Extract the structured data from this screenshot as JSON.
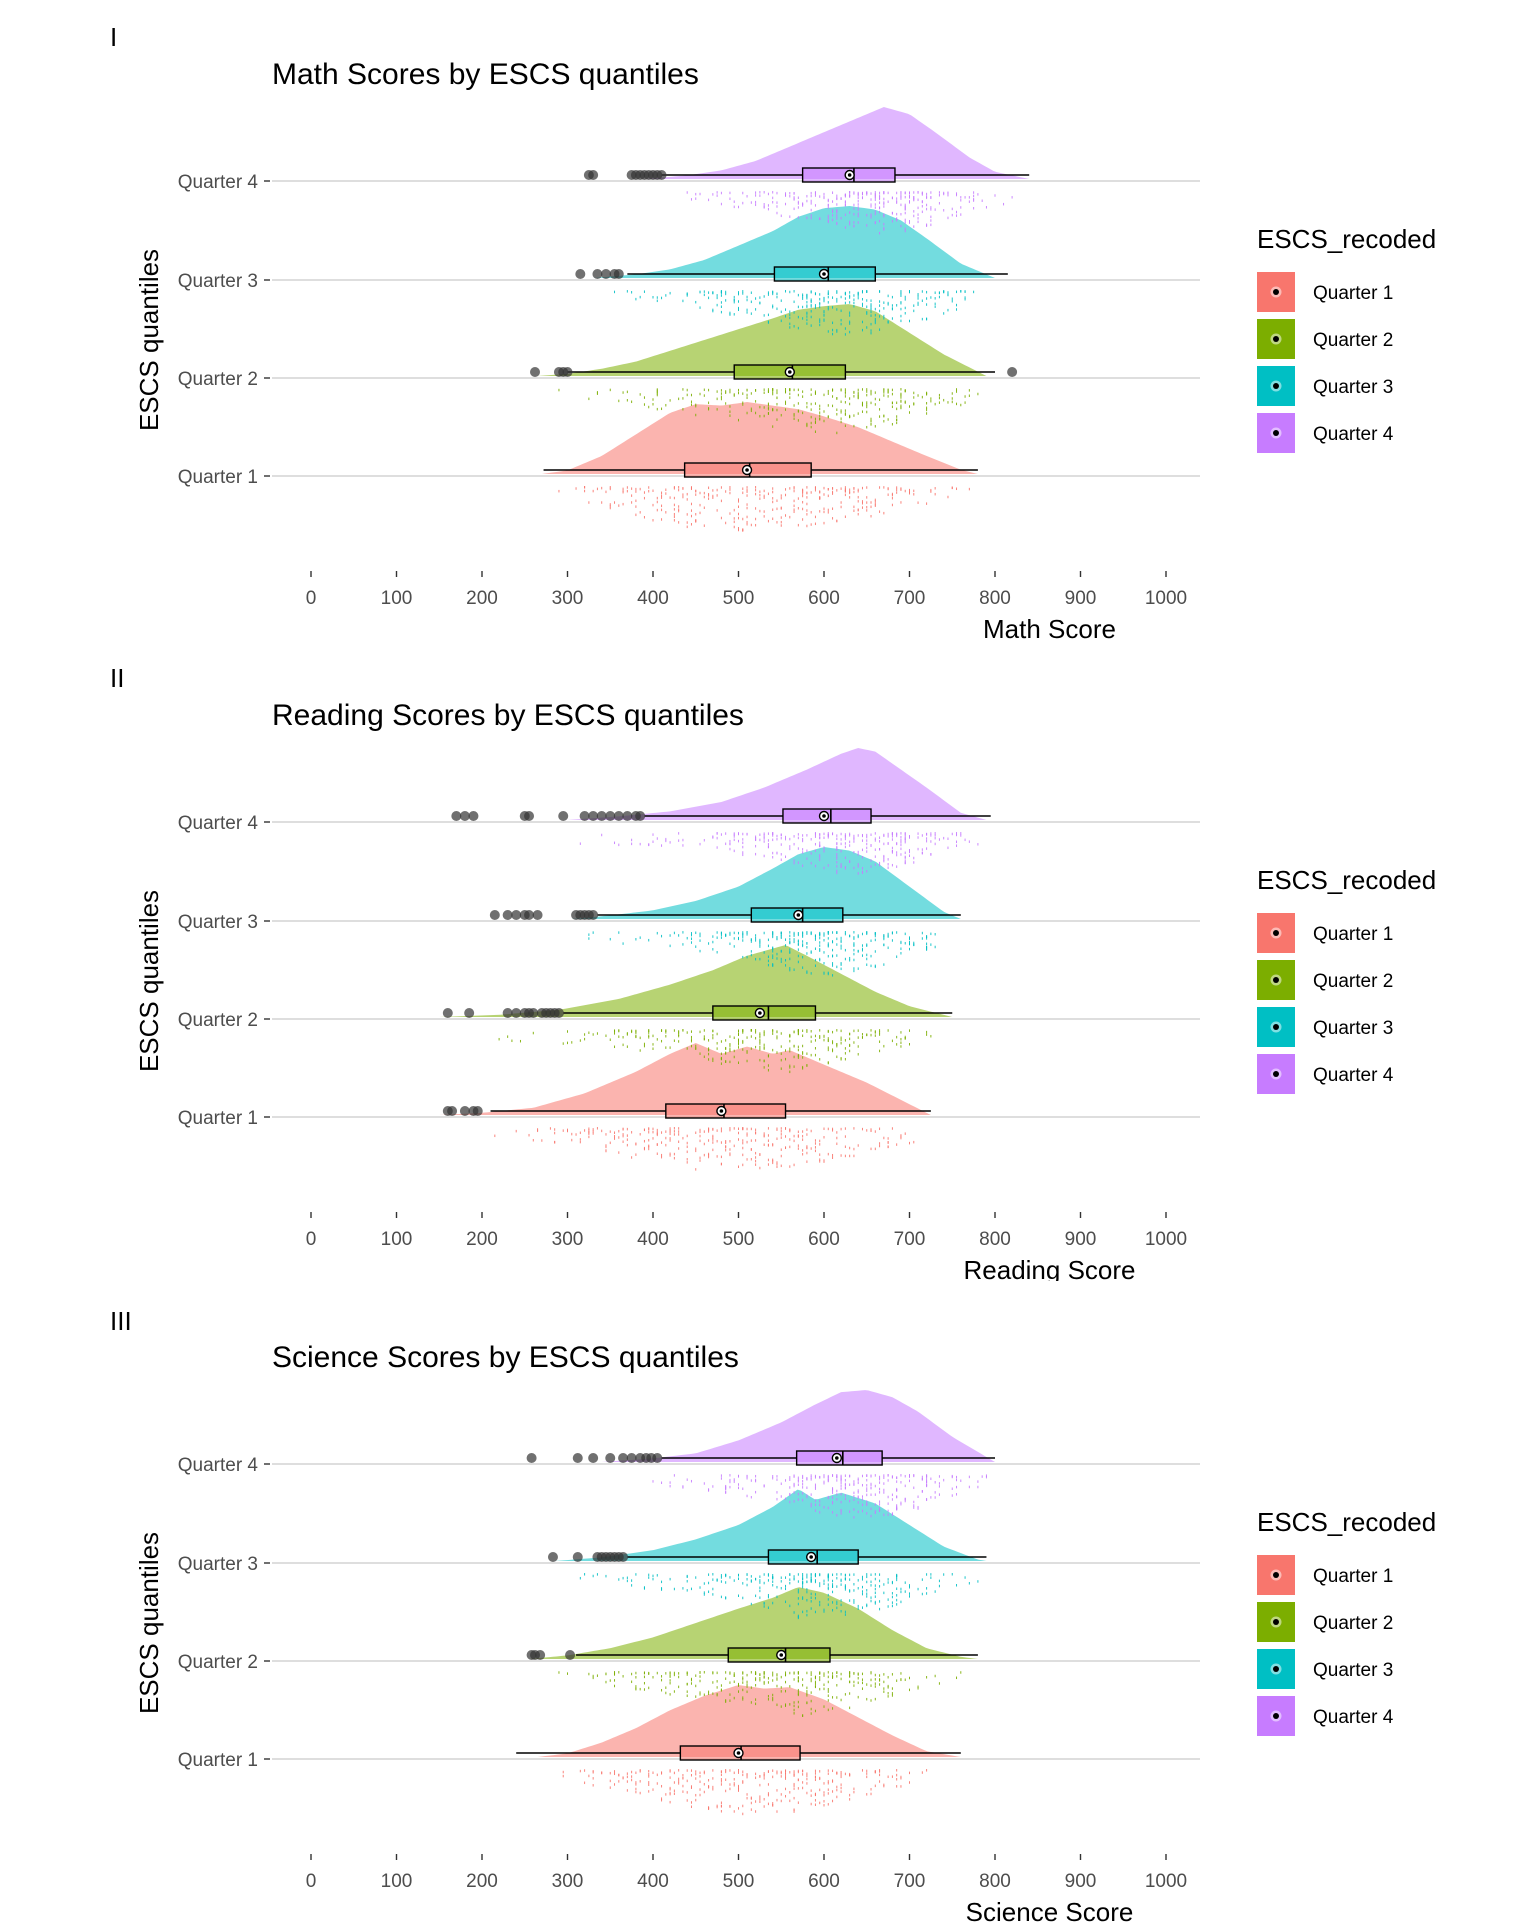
{
  "panels": [
    {
      "label": "I"
    },
    {
      "label": "II"
    },
    {
      "label": "III"
    }
  ],
  "chart_data": [
    {
      "type": "raincloud",
      "title": "Math Scores by ESCS quantiles",
      "xlabel": "Math Score",
      "ylabel": "ESCS quantiles",
      "xlim": [
        -30,
        1050
      ],
      "xticks": [
        0,
        100,
        200,
        300,
        400,
        500,
        600,
        700,
        800,
        900,
        1000
      ],
      "categories": [
        "Quarter 1",
        "Quarter 2",
        "Quarter 3",
        "Quarter 4"
      ],
      "legend": {
        "title": "ESCS_recoded",
        "position": "right",
        "entries": [
          "Quarter 1",
          "Quarter 2",
          "Quarter 3",
          "Quarter 4"
        ]
      },
      "grid": "horizontal",
      "series": [
        {
          "category": "Quarter 1",
          "color": "#F8766D",
          "density_x": [
            270,
            300,
            340,
            380,
            420,
            450,
            480,
            510,
            540,
            570,
            600,
            640,
            680,
            720,
            760,
            780
          ],
          "density_y": [
            0,
            0.05,
            0.25,
            0.55,
            0.85,
            0.97,
            0.95,
            1.0,
            0.95,
            0.9,
            0.8,
            0.65,
            0.45,
            0.25,
            0.06,
            0
          ],
          "box": {
            "whisker_low": 272,
            "q1": 437,
            "median": 513,
            "q3": 585,
            "whisker_high": 780
          },
          "mean": 510,
          "outliers": []
        },
        {
          "category": "Quarter 2",
          "color": "#7CAE00",
          "density_x": [
            265,
            300,
            340,
            380,
            420,
            460,
            500,
            540,
            570,
            600,
            630,
            660,
            700,
            740,
            790
          ],
          "density_y": [
            0,
            0.03,
            0.1,
            0.2,
            0.35,
            0.5,
            0.65,
            0.8,
            0.92,
            0.97,
            1.0,
            0.9,
            0.6,
            0.3,
            0
          ],
          "box": {
            "whisker_low": 300,
            "q1": 495,
            "median": 563,
            "q3": 625,
            "whisker_high": 800
          },
          "mean": 560,
          "outliers": [
            262,
            290,
            295,
            300,
            820
          ]
        },
        {
          "category": "Quarter 3",
          "color": "#00BFC4",
          "density_x": [
            330,
            380,
            420,
            460,
            500,
            540,
            570,
            600,
            630,
            660,
            690,
            720,
            760,
            800
          ],
          "density_y": [
            0,
            0.05,
            0.12,
            0.25,
            0.45,
            0.65,
            0.85,
            0.97,
            1.0,
            0.95,
            0.8,
            0.55,
            0.2,
            0
          ],
          "box": {
            "whisker_low": 370,
            "q1": 542,
            "median": 605,
            "q3": 660,
            "whisker_high": 815
          },
          "mean": 600,
          "outliers": [
            315,
            335,
            345,
            355,
            360
          ]
        },
        {
          "category": "Quarter 4",
          "color": "#C77CFF",
          "density_x": [
            390,
            440,
            480,
            520,
            560,
            600,
            640,
            670,
            700,
            730,
            770,
            800,
            840
          ],
          "density_y": [
            0,
            0.05,
            0.12,
            0.25,
            0.45,
            0.65,
            0.85,
            1.0,
            0.9,
            0.65,
            0.3,
            0.1,
            0
          ],
          "box": {
            "whisker_low": 410,
            "q1": 575,
            "median": 635,
            "q3": 683,
            "whisker_high": 840
          },
          "mean": 630,
          "outliers": [
            325,
            330,
            375,
            380,
            385,
            390,
            395,
            400,
            405,
            410
          ]
        }
      ]
    },
    {
      "type": "raincloud",
      "title": "Reading Scores by ESCS quantiles",
      "xlabel": "Reading Score",
      "ylabel": "ESCS quantiles",
      "xlim": [
        -30,
        1050
      ],
      "xticks": [
        0,
        100,
        200,
        300,
        400,
        500,
        600,
        700,
        800,
        900,
        1000
      ],
      "categories": [
        "Quarter 1",
        "Quarter 2",
        "Quarter 3",
        "Quarter 4"
      ],
      "legend": {
        "title": "ESCS_recoded",
        "position": "right",
        "entries": [
          "Quarter 1",
          "Quarter 2",
          "Quarter 3",
          "Quarter 4"
        ]
      },
      "grid": "horizontal",
      "series": [
        {
          "category": "Quarter 1",
          "color": "#F8766D",
          "density_x": [
            150,
            200,
            260,
            320,
            380,
            420,
            450,
            480,
            510,
            540,
            560,
            600,
            650,
            700,
            725
          ],
          "density_y": [
            0,
            0.03,
            0.1,
            0.3,
            0.6,
            0.85,
            1.0,
            0.85,
            0.95,
            0.85,
            0.9,
            0.7,
            0.45,
            0.15,
            0
          ],
          "box": {
            "whisker_low": 210,
            "q1": 415,
            "median": 483,
            "q3": 555,
            "whisker_high": 725
          },
          "mean": 480,
          "outliers": [
            160,
            165,
            180,
            190,
            195
          ]
        },
        {
          "category": "Quarter 2",
          "color": "#7CAE00",
          "density_x": [
            150,
            220,
            290,
            360,
            420,
            470,
            510,
            540,
            555,
            580,
            620,
            660,
            700,
            740,
            750
          ],
          "density_y": [
            0,
            0.03,
            0.1,
            0.25,
            0.45,
            0.65,
            0.85,
            0.95,
            1.0,
            0.85,
            0.6,
            0.35,
            0.15,
            0.03,
            0
          ],
          "box": {
            "whisker_low": 295,
            "q1": 470,
            "median": 535,
            "q3": 590,
            "whisker_high": 750
          },
          "mean": 525,
          "outliers": [
            160,
            185,
            230,
            240,
            250,
            255,
            260,
            270,
            275,
            280,
            285,
            290
          ]
        },
        {
          "category": "Quarter 3",
          "color": "#00BFC4",
          "density_x": [
            305,
            350,
            400,
            450,
            500,
            540,
            570,
            600,
            630,
            660,
            700,
            740,
            760
          ],
          "density_y": [
            0,
            0.05,
            0.12,
            0.25,
            0.45,
            0.7,
            0.9,
            1.0,
            0.95,
            0.8,
            0.45,
            0.1,
            0
          ],
          "box": {
            "whisker_low": 335,
            "q1": 515,
            "median": 575,
            "q3": 622,
            "whisker_high": 760
          },
          "mean": 570,
          "outliers": [
            215,
            230,
            240,
            250,
            255,
            265,
            310,
            315,
            320,
            325,
            330
          ]
        },
        {
          "category": "Quarter 4",
          "color": "#C77CFF",
          "density_x": [
            300,
            360,
            420,
            480,
            530,
            580,
            620,
            640,
            660,
            690,
            720,
            760,
            790
          ],
          "density_y": [
            0,
            0.05,
            0.12,
            0.25,
            0.45,
            0.7,
            0.92,
            1.0,
            0.95,
            0.7,
            0.45,
            0.1,
            0
          ],
          "box": {
            "whisker_low": 390,
            "q1": 552,
            "median": 608,
            "q3": 655,
            "whisker_high": 795
          },
          "mean": 600,
          "outliers": [
            170,
            180,
            190,
            250,
            255,
            295,
            320,
            330,
            340,
            350,
            360,
            370,
            380,
            385
          ]
        }
      ]
    },
    {
      "type": "raincloud",
      "title": "Science Scores by ESCS quantiles",
      "xlabel": "Science Score",
      "ylabel": "ESCS quantiles",
      "xlim": [
        -30,
        1050
      ],
      "xticks": [
        0,
        100,
        200,
        300,
        400,
        500,
        600,
        700,
        800,
        900,
        1000
      ],
      "categories": [
        "Quarter 1",
        "Quarter 2",
        "Quarter 3",
        "Quarter 4"
      ],
      "legend": {
        "title": "ESCS_recoded",
        "position": "right",
        "entries": [
          "Quarter 1",
          "Quarter 2",
          "Quarter 3",
          "Quarter 4"
        ]
      },
      "grid": "horizontal",
      "series": [
        {
          "category": "Quarter 1",
          "color": "#F8766D",
          "density_x": [
            265,
            300,
            340,
            380,
            420,
            460,
            500,
            530,
            560,
            600,
            640,
            680,
            720,
            760
          ],
          "density_y": [
            0,
            0.05,
            0.2,
            0.4,
            0.65,
            0.85,
            1.0,
            0.95,
            0.97,
            0.8,
            0.55,
            0.3,
            0.08,
            0
          ],
          "box": {
            "whisker_low": 240,
            "q1": 432,
            "median": 503,
            "q3": 572,
            "whisker_high": 760
          },
          "mean": 500,
          "outliers": []
        },
        {
          "category": "Quarter 2",
          "color": "#7CAE00",
          "density_x": [
            255,
            300,
            350,
            400,
            450,
            500,
            540,
            570,
            600,
            640,
            680,
            720,
            760,
            780
          ],
          "density_y": [
            0,
            0.05,
            0.15,
            0.3,
            0.5,
            0.7,
            0.85,
            1.0,
            0.92,
            0.7,
            0.4,
            0.15,
            0.03,
            0
          ],
          "box": {
            "whisker_low": 310,
            "q1": 488,
            "median": 555,
            "q3": 607,
            "whisker_high": 780
          },
          "mean": 550,
          "outliers": [
            258,
            262,
            268,
            303
          ]
        },
        {
          "category": "Quarter 3",
          "color": "#00BFC4",
          "density_x": [
            285,
            340,
            400,
            450,
            500,
            540,
            570,
            590,
            620,
            660,
            700,
            740,
            780,
            790
          ],
          "density_y": [
            0,
            0.05,
            0.15,
            0.3,
            0.5,
            0.75,
            1.0,
            0.85,
            0.95,
            0.8,
            0.5,
            0.2,
            0.02,
            0
          ],
          "box": {
            "whisker_low": 370,
            "q1": 535,
            "median": 592,
            "q3": 640,
            "whisker_high": 790
          },
          "mean": 585,
          "outliers": [
            283,
            312,
            335,
            340,
            345,
            350,
            355,
            360,
            365
          ]
        },
        {
          "category": "Quarter 4",
          "color": "#C77CFF",
          "density_x": [
            340,
            400,
            450,
            500,
            550,
            590,
            620,
            650,
            680,
            710,
            750,
            800
          ],
          "density_y": [
            0,
            0.05,
            0.12,
            0.3,
            0.55,
            0.8,
            0.97,
            1.0,
            0.9,
            0.7,
            0.35,
            0
          ],
          "box": {
            "whisker_low": 410,
            "q1": 568,
            "median": 622,
            "q3": 668,
            "whisker_high": 800
          },
          "mean": 615,
          "outliers": [
            258,
            312,
            330,
            350,
            365,
            375,
            385,
            392,
            398,
            405
          ]
        }
      ]
    }
  ]
}
